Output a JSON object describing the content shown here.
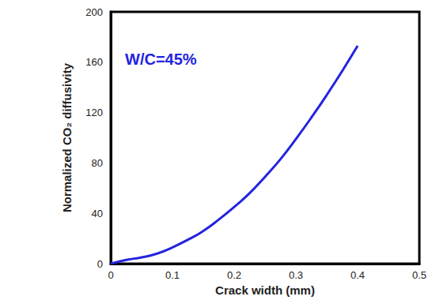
{
  "chart_data": {
    "type": "line",
    "x_label": "Crack width (mm)",
    "y_label": "Normalized CO₂ diffusivity",
    "annotation": "W/C=45%",
    "x": [
      0,
      0.025,
      0.05,
      0.075,
      0.1,
      0.125,
      0.15,
      0.175,
      0.2,
      0.225,
      0.25,
      0.275,
      0.3,
      0.325,
      0.35,
      0.375,
      0.4
    ],
    "values": [
      0,
      3,
      5,
      8,
      13,
      19,
      26,
      35,
      45,
      56,
      69,
      83,
      99,
      116,
      134,
      153,
      173
    ],
    "color": "#2323e0",
    "xlim": [
      0,
      0.5
    ],
    "xticks": [
      0,
      0.1,
      0.2,
      0.3,
      0.4,
      0.5
    ],
    "ylim": [
      0,
      200
    ],
    "yticks": [
      0,
      40,
      80,
      120,
      160,
      200
    ],
    "grid": false
  }
}
